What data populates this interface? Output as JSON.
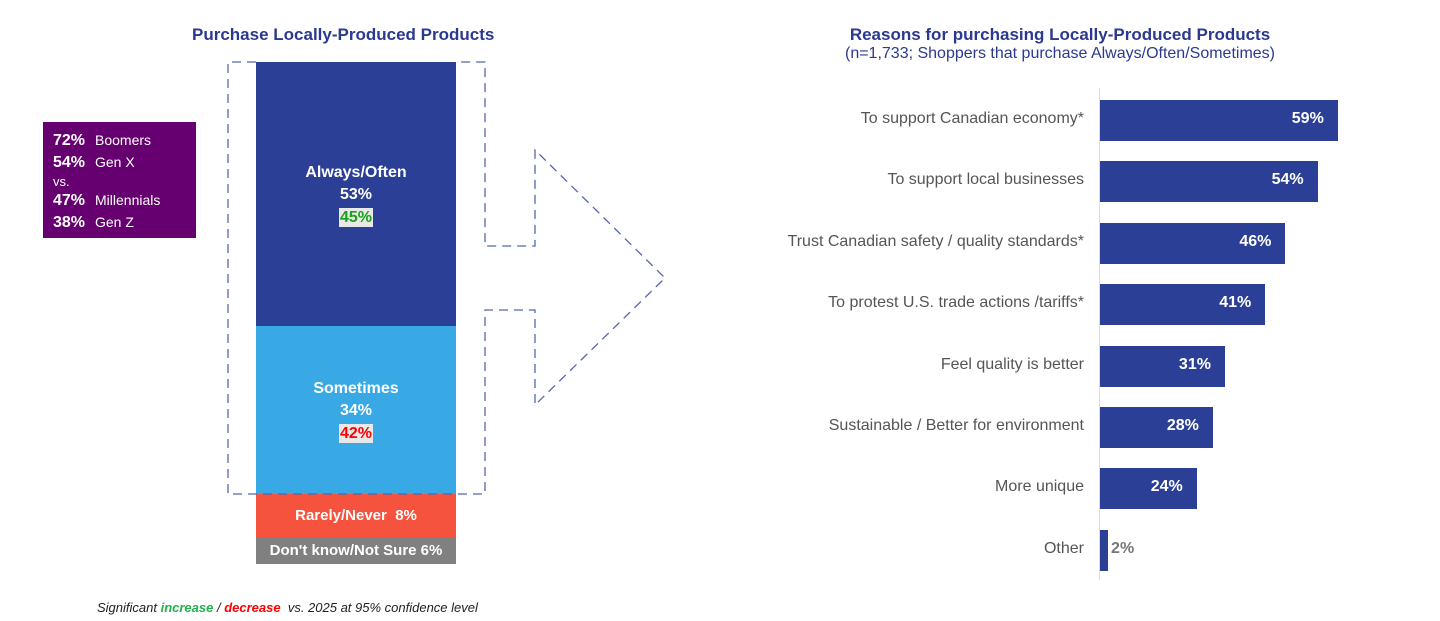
{
  "chart_data": [
    {
      "type": "bar",
      "subtype": "stacked-100",
      "title": "Purchase Locally-Produced Products",
      "segments": [
        {
          "name": "Always/Often",
          "value": 53,
          "previous": 45,
          "change": "increase",
          "color": "#2b3f96"
        },
        {
          "name": "Sometimes",
          "value": 34,
          "previous": 42,
          "change": "decrease",
          "color": "#39a9e6"
        },
        {
          "name": "Rarely/Never",
          "value": 8,
          "color": "#f5533d"
        },
        {
          "name": "Don't know/Not Sure",
          "value": 6,
          "color": "#808080"
        }
      ],
      "segment_labels": [
        "Always/Often",
        "53%",
        "45%",
        "Sometimes",
        "34%",
        "42%",
        "Rarely/Never  8%",
        "Don't know/Not Sure 6%"
      ],
      "callout": {
        "lines": [
          {
            "pct": "72%",
            "label": "Boomers"
          },
          {
            "pct": "54%",
            "label": "Gen X"
          },
          {
            "pct": "",
            "label": "vs."
          },
          {
            "pct": "47%",
            "label": "Millennials"
          },
          {
            "pct": "38%",
            "label": "Gen Z"
          }
        ],
        "color": "#660070"
      }
    },
    {
      "type": "bar",
      "orientation": "horizontal",
      "title": "Reasons for purchasing Locally-Produced Products",
      "subtitle": "(n=1,733; Shoppers that purchase Always/Often/Sometimes)",
      "categories": [
        "To support Canadian economy*",
        "To support local businesses",
        "Trust Canadian safety / quality standards*",
        "To protest U.S. trade actions /tariffs*",
        "Feel quality is better",
        "Sustainable / Better for environment",
        "More unique",
        "Other"
      ],
      "values": [
        59,
        54,
        46,
        41,
        31,
        28,
        24,
        2
      ],
      "value_labels": [
        "59%",
        "54%",
        "46%",
        "41%",
        "31%",
        "28%",
        "24%",
        "2%"
      ],
      "color": "#2b3f96"
    }
  ],
  "footnote": {
    "prefix": "Significant ",
    "increase": "increase",
    "sep": " / ",
    "decrease": "decrease",
    "suffix": "  vs. 2025 at 95% confidence level",
    "increase_color": "#22b04b",
    "decrease_color": "#ff0000"
  }
}
